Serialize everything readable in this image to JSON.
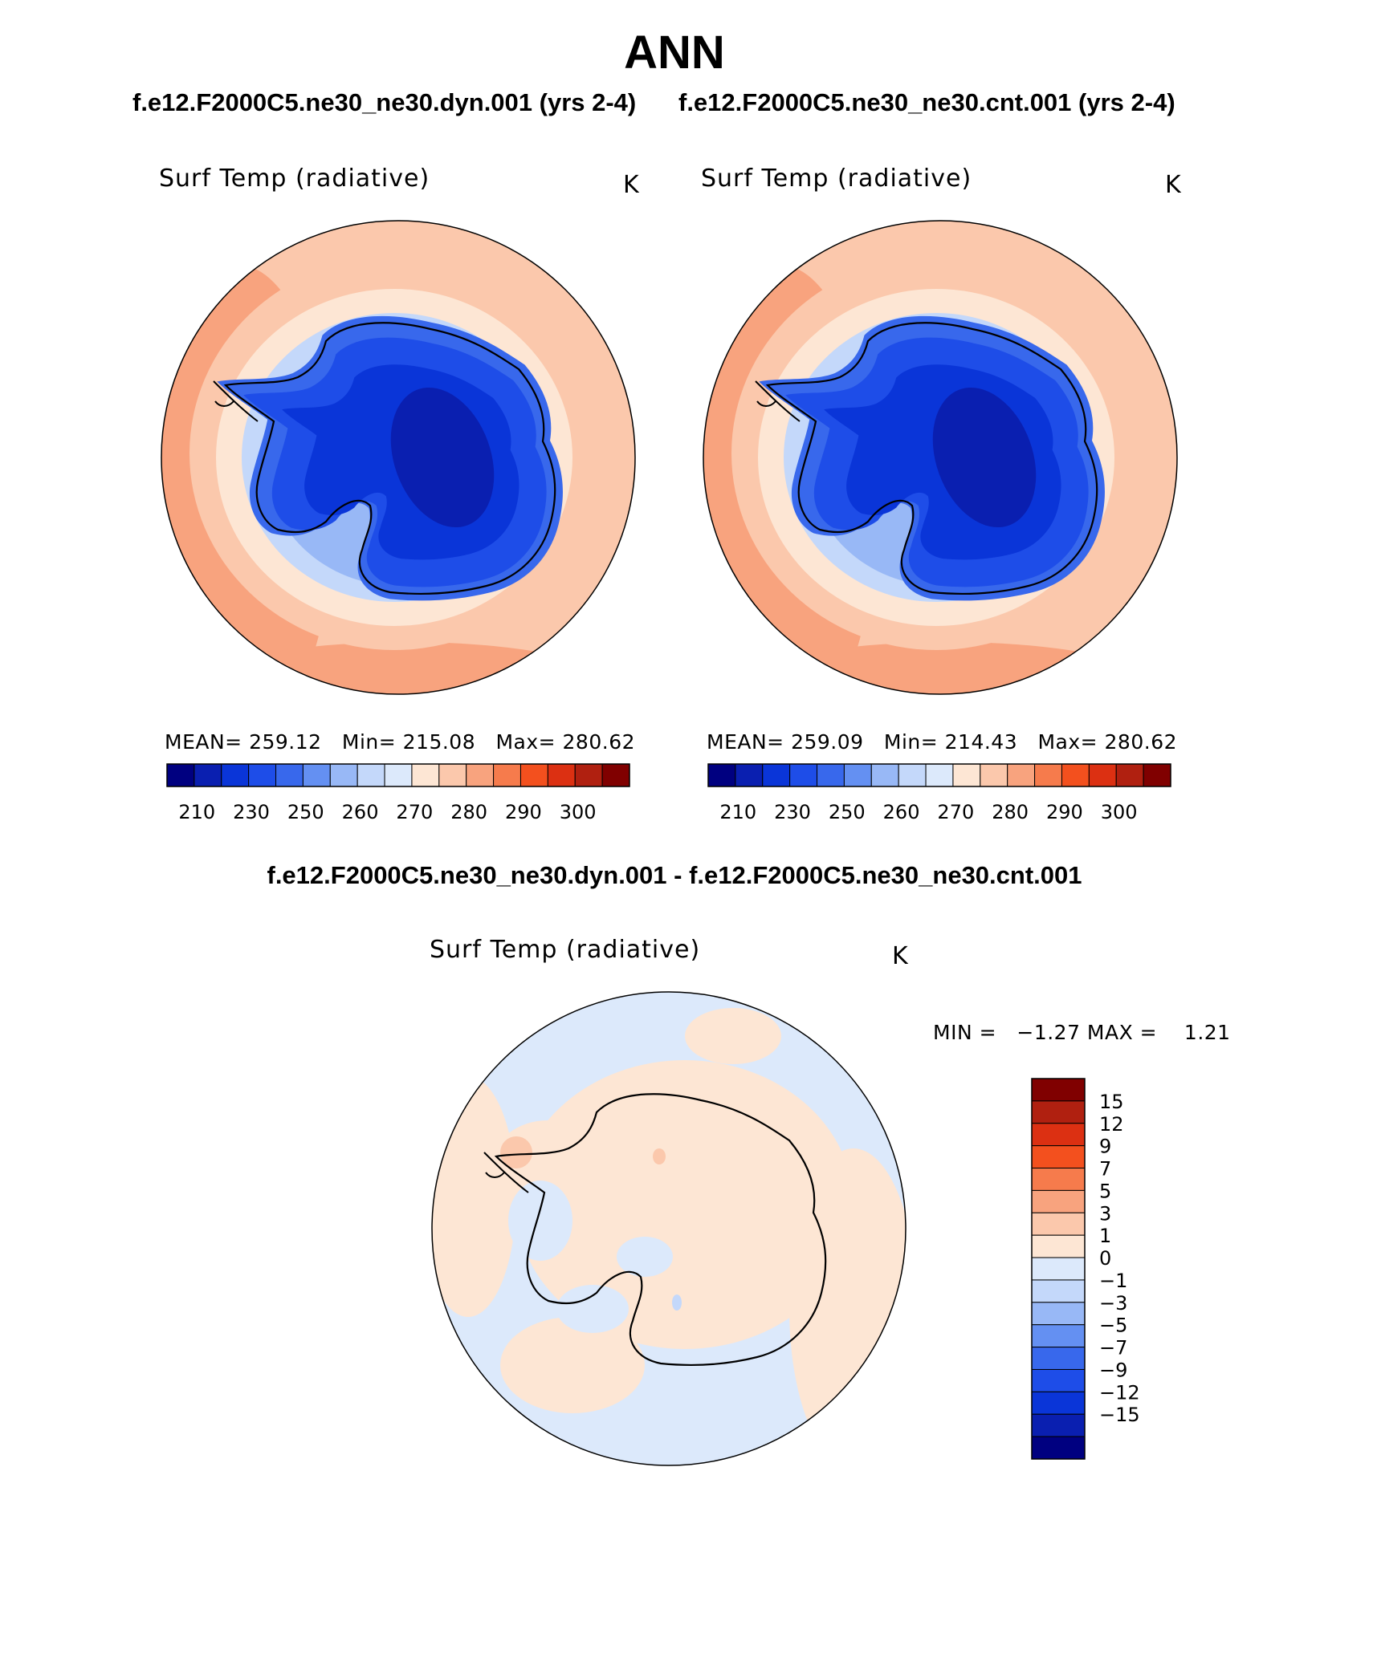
{
  "season": "ANN",
  "case_a": "f.e12.F2000C5.ne30_ne30.dyn.001 (yrs 2-4)",
  "case_b": "f.e12.F2000C5.ne30_ne30.cnt.001 (yrs 2-4)",
  "diff_title": "f.e12.F2000C5.ne30_ne30.dyn.001 - f.e12.F2000C5.ne30_ne30.cnt.001",
  "panels": [
    {
      "variable": "Surf Temp (radiative)",
      "units": "K",
      "stats": "MEAN= 259.12   Min= 215.08   Max= 280.62",
      "mean": 259.12,
      "min": 215.08,
      "max": 280.62
    },
    {
      "variable": "Surf Temp (radiative)",
      "units": "K",
      "stats": "MEAN= 259.09   Min= 214.43   Max= 280.62",
      "mean": 259.09,
      "min": 214.43,
      "max": 280.62
    }
  ],
  "diff_panel": {
    "variable": "Surf Temp (radiative)",
    "units": "K",
    "stats": "MIN =   −1.27 MAX =    1.21",
    "min": -1.27,
    "max": 1.21
  },
  "colorbar_abs": {
    "tick_labels": [
      "210",
      "230",
      "250",
      "260",
      "270",
      "280",
      "290",
      "300"
    ],
    "colors": [
      "#000080",
      "#0a1fb0",
      "#0a35d8",
      "#1e4de8",
      "#3868ec",
      "#6490f2",
      "#98b8f6",
      "#c4d8fa",
      "#dce9fb",
      "#fde6d4",
      "#fbc8ac",
      "#f8a37e",
      "#f67b4c",
      "#f3501e",
      "#dc3012",
      "#b02010",
      "#800000"
    ]
  },
  "colorbar_diff": {
    "tick_labels": [
      "15",
      "12",
      "9",
      "7",
      "5",
      "3",
      "1",
      "0",
      "−1",
      "−3",
      "−5",
      "−7",
      "−9",
      "−12",
      "−15"
    ],
    "colors": [
      "#800000",
      "#b02010",
      "#dc3012",
      "#f3501e",
      "#f67b4c",
      "#f8a37e",
      "#fbc8ac",
      "#fde6d4",
      "#dce9fb",
      "#c4d8fa",
      "#98b8f6",
      "#6490f2",
      "#3868ec",
      "#1e4de8",
      "#0a35d8",
      "#0a1fb0",
      "#000080"
    ]
  }
}
